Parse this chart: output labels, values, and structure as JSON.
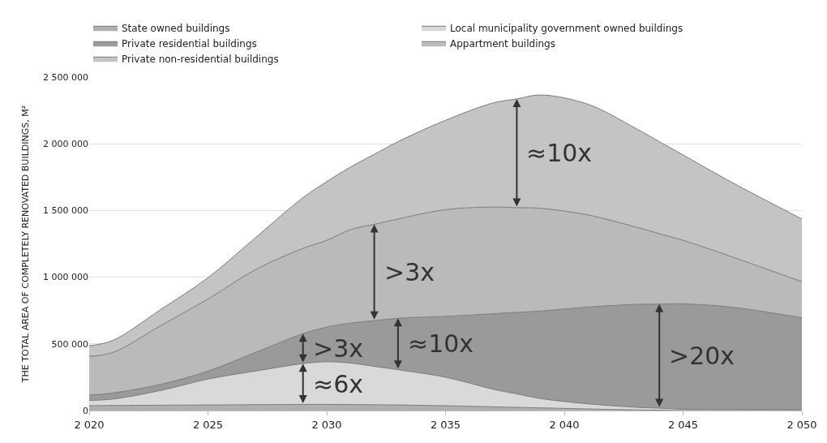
{
  "chart_data": {
    "type": "area",
    "stacked": true,
    "ylabel": "THE TOTAL AREA OF COMPLETELY RENOVATED BUILDINGS, M²",
    "x": [
      2020,
      2021,
      2023,
      2025,
      2027,
      2029,
      2030,
      2031,
      2032,
      2033,
      2035,
      2037,
      2038,
      2039,
      2041,
      2043,
      2044,
      2045,
      2047,
      2050
    ],
    "series": [
      {
        "name": "State owned buildings",
        "color": "#b0b0b0",
        "values": [
          36000,
          38000,
          40000,
          42000,
          44000,
          46000,
          46000,
          45000,
          43500,
          42000,
          36000,
          28000,
          24000,
          20000,
          12000,
          5000,
          2500,
          0,
          0,
          0
        ]
      },
      {
        "name": "Local municipality government owned buildings",
        "color": "#d9d9d9",
        "values": [
          40000,
          48000,
          110000,
          194000,
          252000,
          306000,
          320000,
          311000,
          287500,
          264000,
          214000,
          132000,
          101000,
          70000,
          38000,
          20000,
          15000,
          10000,
          8000,
          6000
        ]
      },
      {
        "name": "Private residential buildings",
        "color": "#9a9a9a",
        "values": [
          40000,
          46000,
          46000,
          60000,
          140000,
          224000,
          260000,
          300000,
          343000,
          386000,
          456000,
          566000,
          611000,
          656000,
          726000,
          771000,
          780500,
          790000,
          768000,
          690000
        ]
      },
      {
        "name": "Appartment buildings",
        "color": "#bababa",
        "values": [
          290000,
          304000,
          440000,
          540000,
          620000,
          640000,
          650000,
          700000,
          722000,
          744000,
          800000,
          800000,
          785000,
          770000,
          690000,
          580000,
          528000,
          476000,
          380000,
          270000
        ]
      },
      {
        "name": "Private non-residential buildings",
        "color": "#c4c4c4",
        "values": [
          80000,
          90000,
          120000,
          160000,
          240000,
          380000,
          440000,
          470000,
          525000,
          580000,
          670000,
          780000,
          815000,
          850000,
          830000,
          740000,
          690000,
          640000,
          560000,
          470000
        ]
      }
    ],
    "xlim": [
      2020,
      2050
    ],
    "xticks": [
      {
        "value": 2020,
        "label": "2 020"
      },
      {
        "value": 2025,
        "label": "2 025"
      },
      {
        "value": 2030,
        "label": "2 030"
      },
      {
        "value": 2035,
        "label": "2 035"
      },
      {
        "value": 2040,
        "label": "2 040"
      },
      {
        "value": 2045,
        "label": "2 045"
      },
      {
        "value": 2050,
        "label": "2 050"
      }
    ],
    "ylim": [
      0,
      2500000
    ],
    "yticks": [
      0,
      {
        "value": 500000,
        "label": "500 000"
      },
      {
        "value": 1000000,
        "label": "1 000 000"
      },
      {
        "value": 1500000,
        "label": "1 500 000"
      },
      {
        "value": 2000000,
        "label": "2 000 000"
      },
      {
        "value": 2500000,
        "label": "2 500 000"
      }
    ],
    "grid": "y",
    "legend": "top",
    "annotations": [
      {
        "text": "≈10x",
        "x": 2038,
        "y": 2336000
      },
      {
        "text": ">3x",
        "x": 2032,
        "y": 1396000
      },
      {
        "text": ">3x",
        "x": 2029,
        "y": 576000
      },
      {
        "text": "≈6x",
        "x": 2029,
        "y": 352000
      },
      {
        "text": "≈10x",
        "x": 2033,
        "y": 692000
      },
      {
        "text": ">20x",
        "x": 2044,
        "y": 798000
      }
    ]
  }
}
